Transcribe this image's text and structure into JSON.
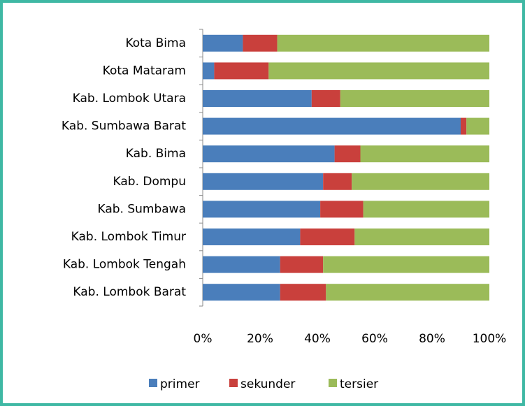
{
  "chart_data": {
    "type": "stacked_barh",
    "categories": [
      "Kota Bima",
      "Kota Mataram",
      "Kab. Lombok Utara",
      "Kab. Sumbawa  Barat",
      "Kab. Bima",
      "Kab. Dompu",
      "Kab. Sumbawa",
      "Kab. Lombok Timur",
      "Kab. Lombok Tengah",
      "Kab. Lombok Barat"
    ],
    "series": [
      {
        "name": "primer",
        "color": "#4a7ebb",
        "values": [
          14,
          4,
          38,
          90,
          46,
          42,
          41,
          34,
          27,
          27
        ]
      },
      {
        "name": "sekunder",
        "color": "#c9403c",
        "values": [
          12,
          19,
          10,
          2,
          9,
          10,
          15,
          19,
          15,
          16
        ]
      },
      {
        "name": "tersier",
        "color": "#9bbb59",
        "values": [
          74,
          77,
          52,
          8,
          45,
          48,
          44,
          47,
          58,
          57
        ]
      }
    ],
    "xlim": [
      0,
      100
    ],
    "xticks": [
      {
        "value": 0,
        "label": "0%"
      },
      {
        "value": 20,
        "label": "20%"
      },
      {
        "value": 40,
        "label": "40%"
      },
      {
        "value": 60,
        "label": "60%"
      },
      {
        "value": 80,
        "label": "80%"
      },
      {
        "value": 100,
        "label": "100%"
      }
    ],
    "legend": "bottom"
  }
}
